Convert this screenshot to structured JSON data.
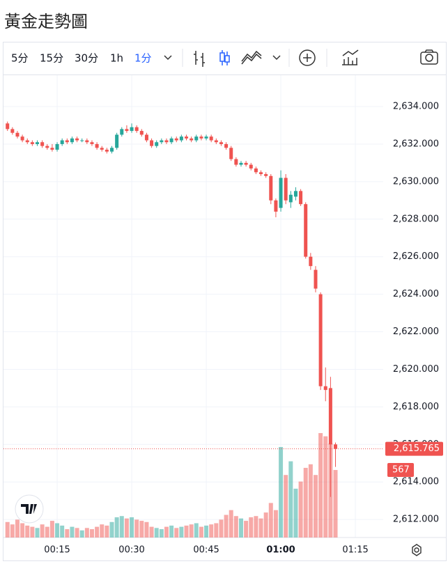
{
  "chart_data": {
    "type": "candlestick",
    "title": "黃金走勢圖",
    "toolbar": {
      "intervals": [
        "5分",
        "15分",
        "30分",
        "1h"
      ],
      "selected": "1分"
    },
    "up_color": "#26a69a",
    "down_color": "#ef5350",
    "grid": true,
    "x": [
      5,
      6,
      7,
      8,
      9,
      10,
      11,
      12,
      13,
      14,
      15,
      16,
      17,
      18,
      19,
      20,
      21,
      22,
      23,
      24,
      25,
      26,
      27,
      28,
      29,
      30,
      31,
      32,
      33,
      34,
      35,
      36,
      37,
      38,
      39,
      40,
      41,
      42,
      43,
      44,
      45,
      46,
      47,
      48,
      49,
      50,
      51,
      52,
      53,
      54,
      55,
      56,
      57,
      58,
      59,
      60,
      61,
      62,
      63,
      64,
      65,
      66,
      67,
      68,
      69,
      70,
      71
    ],
    "xlim": [
      4.2,
      80.6
    ],
    "xticks": [
      {
        "value": 15,
        "label": "00:15"
      },
      {
        "value": 30,
        "label": "00:30"
      },
      {
        "value": 45,
        "label": "00:45"
      },
      {
        "value": 60,
        "label": "01:00"
      },
      {
        "value": 75,
        "label": "01:15"
      }
    ],
    "ylim": [
      2611.04,
      2635.67
    ],
    "yticks": [
      {
        "value": 2612,
        "label": "2,612.000"
      },
      {
        "value": 2614,
        "label": "2,614.000"
      },
      {
        "value": 2616,
        "label": "2,616.000"
      },
      {
        "value": 2618,
        "label": "2,618.000"
      },
      {
        "value": 2620,
        "label": "2,620.000"
      },
      {
        "value": 2622,
        "label": "2,622.000"
      },
      {
        "value": 2624,
        "label": "2,624.000"
      },
      {
        "value": 2626,
        "label": "2,626.000"
      },
      {
        "value": 2628,
        "label": "2,628.000"
      },
      {
        "value": 2630,
        "label": "2,630.000"
      },
      {
        "value": 2632,
        "label": "2,632.000"
      },
      {
        "value": 2634,
        "label": "2,634.000"
      }
    ],
    "open": [
      2633.1,
      2632.8,
      2632.6,
      2632.4,
      2632.2,
      2632.1,
      2632.0,
      2632.1,
      2631.9,
      2631.8,
      2631.7,
      2632.0,
      2632.2,
      2632.1,
      2632.3,
      2632.2,
      2632.2,
      2632.1,
      2632.0,
      2631.8,
      2631.7,
      2631.6,
      2631.8,
      2632.5,
      2632.8,
      2632.7,
      2632.9,
      2632.7,
      2632.5,
      2632.2,
      2631.9,
      2632.1,
      2632.2,
      2632.1,
      2632.3,
      2632.2,
      2632.4,
      2632.3,
      2632.2,
      2632.4,
      2632.3,
      2632.4,
      2632.2,
      2632.1,
      2632.0,
      2631.8,
      2631.2,
      2630.9,
      2631.0,
      2630.9,
      2630.7,
      2630.5,
      2630.4,
      2630.3,
      2629.0,
      2628.6,
      2630.2,
      2628.9,
      2629.2,
      2629.5,
      2628.8,
      2626.0,
      2625.3,
      2624.0,
      2619.1,
      2619.0,
      2616.0
    ],
    "high": [
      2633.2,
      2632.9,
      2632.7,
      2632.5,
      2632.3,
      2632.2,
      2632.2,
      2632.2,
      2632.0,
      2632.0,
      2632.1,
      2632.3,
      2632.3,
      2632.4,
      2632.4,
      2632.3,
      2632.3,
      2632.2,
      2632.1,
      2631.9,
      2631.8,
      2631.9,
      2632.6,
      2632.9,
      2633.0,
      2633.1,
      2633.0,
      2632.8,
      2632.6,
      2632.3,
      2632.2,
      2632.3,
      2632.3,
      2632.4,
      2632.4,
      2632.5,
      2632.5,
      2632.4,
      2632.5,
      2632.5,
      2632.5,
      2632.5,
      2632.3,
      2632.2,
      2632.1,
      2631.9,
      2631.3,
      2631.1,
      2631.1,
      2631.0,
      2630.8,
      2630.6,
      2630.5,
      2630.4,
      2629.1,
      2630.6,
      2630.4,
      2629.5,
      2629.7,
      2629.6,
      2628.9,
      2626.2,
      2625.5,
      2624.1,
      2620.1,
      2619.6,
      2616.1
    ],
    "low": [
      2632.7,
      2632.5,
      2632.3,
      2632.1,
      2632.0,
      2631.9,
      2631.9,
      2631.8,
      2631.7,
      2631.6,
      2631.6,
      2631.9,
      2632.0,
      2632.0,
      2632.1,
      2632.1,
      2632.0,
      2631.9,
      2631.7,
      2631.6,
      2631.5,
      2631.5,
      2631.7,
      2632.4,
      2632.6,
      2632.6,
      2632.6,
      2632.4,
      2632.1,
      2631.8,
      2631.8,
      2632.0,
      2632.0,
      2632.0,
      2632.1,
      2632.1,
      2632.2,
      2632.1,
      2632.1,
      2632.2,
      2632.2,
      2632.1,
      2632.0,
      2631.9,
      2631.7,
      2631.1,
      2630.8,
      2630.8,
      2630.8,
      2630.6,
      2630.4,
      2630.3,
      2630.2,
      2628.8,
      2628.1,
      2628.4,
      2628.8,
      2628.6,
      2629.0,
      2628.7,
      2625.9,
      2625.3,
      2624.1,
      2618.9,
      2618.3,
      2613.2,
      2614.8
    ],
    "close": [
      2632.8,
      2632.6,
      2632.4,
      2632.2,
      2632.1,
      2632.0,
      2632.1,
      2631.9,
      2631.8,
      2631.7,
      2632.0,
      2632.2,
      2632.1,
      2632.3,
      2632.2,
      2632.2,
      2632.1,
      2632.0,
      2631.8,
      2631.7,
      2631.6,
      2631.8,
      2632.5,
      2632.8,
      2632.7,
      2632.9,
      2632.7,
      2632.5,
      2632.2,
      2631.9,
      2632.1,
      2632.2,
      2632.1,
      2632.3,
      2632.2,
      2632.4,
      2632.3,
      2632.2,
      2632.4,
      2632.3,
      2632.4,
      2632.2,
      2632.1,
      2632.0,
      2631.8,
      2631.2,
      2630.9,
      2631.0,
      2630.9,
      2630.7,
      2630.5,
      2630.4,
      2630.3,
      2629.0,
      2628.4,
      2630.2,
      2629.0,
      2629.3,
      2629.5,
      2628.8,
      2626.0,
      2625.5,
      2624.3,
      2619.1,
      2618.9,
      2616.0,
      2615.765
    ],
    "volume": [
      130,
      110,
      150,
      120,
      100,
      90,
      80,
      110,
      90,
      140,
      120,
      100,
      70,
      90,
      80,
      60,
      80,
      70,
      90,
      110,
      100,
      130,
      170,
      180,
      160,
      170,
      150,
      140,
      130,
      90,
      80,
      70,
      90,
      100,
      80,
      90,
      100,
      110,
      120,
      90,
      100,
      110,
      120,
      150,
      190,
      230,
      180,
      160,
      140,
      170,
      180,
      160,
      210,
      290,
      230,
      760,
      525,
      640,
      410,
      470,
      585,
      615,
      525,
      877,
      850,
      790,
      567
    ],
    "volume_lim": [
      0,
      3883
    ],
    "last_price_label": "2,615.765"
  }
}
